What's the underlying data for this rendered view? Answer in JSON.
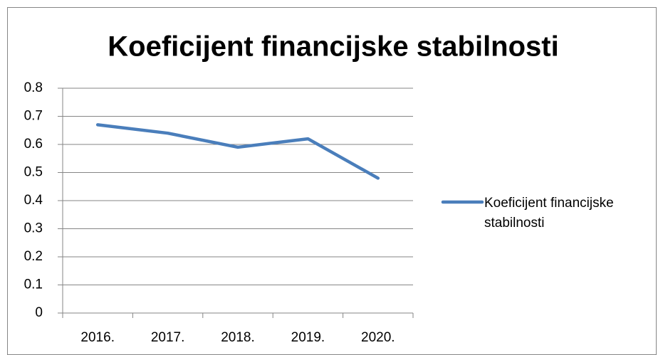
{
  "chart_data": {
    "type": "line",
    "title": "Koeficijent financijske stabilnosti",
    "categories": [
      "2016.",
      "2017.",
      "2018.",
      "2019.",
      "2020."
    ],
    "series": [
      {
        "name": "Koeficijent financijske stabilnosti",
        "color": "#4a7ebb",
        "values": [
          0.67,
          0.64,
          0.59,
          0.62,
          0.48
        ]
      }
    ],
    "ylim": [
      0,
      0.8
    ],
    "yticks": [
      0,
      0.1,
      0.2,
      0.3,
      0.4,
      0.5,
      0.6,
      0.7,
      0.8
    ],
    "grid": true,
    "legend": "right"
  }
}
